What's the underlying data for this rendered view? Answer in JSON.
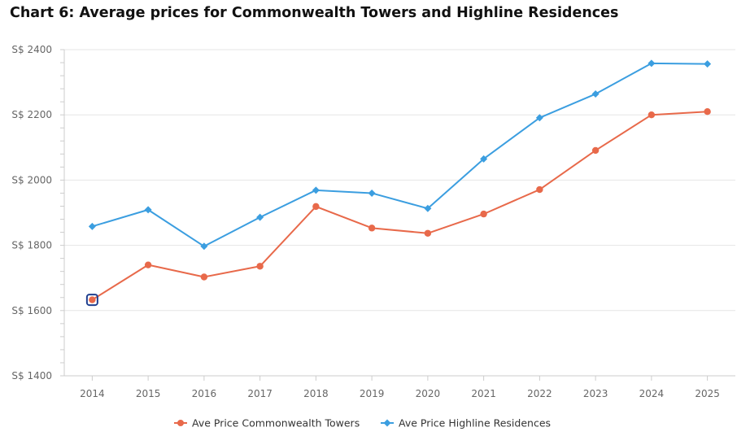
{
  "chart_data": {
    "type": "line",
    "title": "Chart 6: Average prices for Commonwealth Towers and Highline Residences",
    "xlabel": "",
    "ylabel": "",
    "categories": [
      "2014",
      "2015",
      "2016",
      "2017",
      "2018",
      "2019",
      "2020",
      "2021",
      "2022",
      "2023",
      "2024",
      "2025"
    ],
    "ylim": [
      1400,
      2400
    ],
    "yticks": [
      1400,
      1600,
      1800,
      2000,
      2200,
      2400
    ],
    "ytick_labels": [
      "S$ 1400",
      "S$ 1600",
      "S$ 1800",
      "S$ 2000",
      "S$ 2200",
      "S$ 2400"
    ],
    "grid": true,
    "legend_position": "bottom-center",
    "series": [
      {
        "name": "Ave Price Commonwealth Towers",
        "color": "#e8694a",
        "marker": "circle",
        "values": [
          1633,
          1740,
          1703,
          1736,
          1919,
          1853,
          1837,
          1896,
          1971,
          2091,
          2200,
          2210
        ]
      },
      {
        "name": "Ave Price Highline Residences",
        "color": "#3b9ee0",
        "marker": "diamond",
        "values": [
          1858,
          1909,
          1797,
          1886,
          1969,
          1960,
          1913,
          2065,
          2191,
          2264,
          2358,
          2356
        ]
      }
    ],
    "highlight": {
      "series_index": 0,
      "point_index": 0,
      "color": "#1f3f8f"
    }
  }
}
